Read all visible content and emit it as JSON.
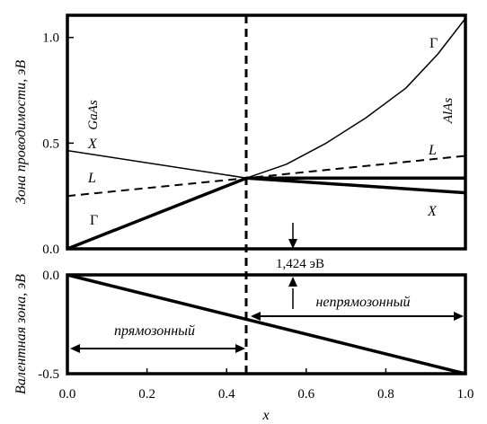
{
  "chart_data": [
    {
      "type": "line",
      "panel": "conduction-band",
      "ylabel": "Зона проводимости, эВ",
      "xlim": [
        0,
        1
      ],
      "ylim": [
        0,
        1.0
      ],
      "y_ticks": [
        "0.0",
        "0.5",
        "1.0"
      ],
      "y_tick_values": [
        0.0,
        0.5,
        1.0
      ],
      "series": [
        {
          "name": "Γ",
          "style": "thick",
          "x": [
            0,
            0.45,
            1.0
          ],
          "y": [
            0.0,
            0.335,
            0.335
          ]
        },
        {
          "name": "Γ",
          "style": "thin",
          "x": [
            0.45,
            0.55,
            0.65,
            0.75,
            0.85,
            0.93,
            1.0
          ],
          "y": [
            0.335,
            0.4,
            0.5,
            0.62,
            0.76,
            0.92,
            1.09
          ]
        },
        {
          "name": "X",
          "style": "thin",
          "x": [
            0,
            0.45
          ],
          "y": [
            0.465,
            0.335
          ]
        },
        {
          "name": "X",
          "style": "thick",
          "x": [
            0.45,
            1.0
          ],
          "y": [
            0.335,
            0.265
          ]
        },
        {
          "name": "L",
          "style": "dashed",
          "x": [
            0,
            0.45,
            1.0
          ],
          "y": [
            0.25,
            0.335,
            0.44
          ]
        }
      ],
      "annotations": {
        "left_material": "GaAs",
        "right_material": "AlAs",
        "gamma_left": "Γ",
        "gamma_right": "Γ",
        "x_left": "X",
        "x_right": "X",
        "l_left": "L",
        "l_right": "L"
      }
    },
    {
      "type": "line",
      "panel": "valence-band",
      "ylabel": "Валентная зона, эВ",
      "xlabel": "x",
      "xlim": [
        0,
        1
      ],
      "ylim": [
        -0.5,
        0.0
      ],
      "x_ticks": [
        "0.0",
        "0.2",
        "0.4",
        "0.6",
        "0.8",
        "1.0"
      ],
      "x_tick_values": [
        0.0,
        0.2,
        0.4,
        0.6,
        0.8,
        1.0
      ],
      "y_ticks": [
        "0.0",
        "-0.5"
      ],
      "y_tick_values": [
        0.0,
        -0.5
      ],
      "series": [
        {
          "name": "",
          "style": "thick",
          "x": [
            0,
            1.0
          ],
          "y": [
            0.0,
            -0.5
          ]
        }
      ],
      "annotations": {
        "direct": "прямозонный",
        "indirect": "непрямозонный"
      }
    }
  ],
  "crossover": {
    "x": 0.45,
    "label": "1,424 эВ"
  }
}
